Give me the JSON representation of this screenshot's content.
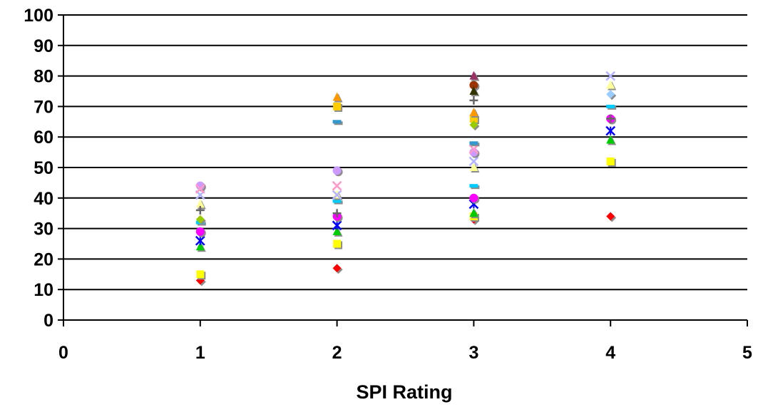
{
  "chart_data": {
    "type": "scatter",
    "title": "",
    "xlabel": "SPI Rating",
    "ylabel": "",
    "xlim": [
      0,
      5
    ],
    "ylim": [
      0,
      100
    ],
    "x_ticks": [
      0,
      1,
      2,
      3,
      4,
      5
    ],
    "y_ticks": [
      0,
      10,
      20,
      30,
      40,
      50,
      60,
      70,
      80,
      90,
      100
    ],
    "x_tick_labels": [
      "0",
      "1",
      "2",
      "3",
      "4",
      "5"
    ],
    "y_tick_labels": [
      "0",
      "10",
      "20",
      "30",
      "40",
      "50",
      "60",
      "70",
      "80",
      "90",
      "100"
    ],
    "grid": "horizontal",
    "legend": "none",
    "series": [
      {
        "color": "#ff0000",
        "marker": "diamond",
        "points": [
          [
            1,
            13
          ],
          [
            2,
            17
          ],
          [
            3,
            33
          ],
          [
            4,
            34
          ]
        ]
      },
      {
        "color": "#ffff00",
        "marker": "square",
        "points": [
          [
            1,
            15
          ],
          [
            2,
            25
          ],
          [
            3,
            34
          ],
          [
            4,
            52
          ]
        ]
      },
      {
        "color": "#00cc00",
        "marker": "triangle",
        "points": [
          [
            1,
            24
          ],
          [
            2,
            29
          ],
          [
            3,
            35
          ],
          [
            4,
            59
          ]
        ]
      },
      {
        "color": "#0000ff",
        "marker": "x-star",
        "points": [
          [
            1,
            26
          ],
          [
            2,
            31
          ],
          [
            3,
            38
          ],
          [
            4,
            62
          ]
        ]
      },
      {
        "color": "#ff00ff",
        "marker": "circle",
        "points": [
          [
            1,
            29
          ],
          [
            2,
            34
          ],
          [
            3,
            40
          ],
          [
            4,
            66
          ]
        ]
      },
      {
        "color": "#00ccff",
        "marker": "dash",
        "points": [
          [
            1,
            32
          ],
          [
            2,
            39
          ],
          [
            3,
            44
          ],
          [
            4,
            70
          ]
        ]
      },
      {
        "color": "#ffff99",
        "marker": "triangle",
        "points": [
          [
            1,
            38
          ],
          [
            2,
            41
          ],
          [
            3,
            50
          ],
          [
            4,
            77
          ]
        ]
      },
      {
        "color": "#b3b3ff",
        "marker": "x",
        "points": [
          [
            1,
            41
          ],
          [
            2,
            41
          ],
          [
            3,
            52
          ],
          [
            4,
            80
          ]
        ]
      },
      {
        "color": "#cc99ff",
        "marker": "circle",
        "points": [
          [
            1,
            44
          ],
          [
            2,
            49
          ],
          [
            3,
            55
          ]
        ]
      },
      {
        "color": "#ff99cc",
        "marker": "x",
        "points": [
          [
            1,
            43
          ],
          [
            2,
            44
          ],
          [
            3,
            56
          ]
        ]
      },
      {
        "color": "#ffcc00",
        "marker": "square",
        "points": [
          [
            2,
            70
          ],
          [
            3,
            66
          ]
        ]
      },
      {
        "color": "#ff9900",
        "marker": "triangle",
        "points": [
          [
            2,
            73
          ],
          [
            3,
            68
          ]
        ]
      },
      {
        "color": "#3399cc",
        "marker": "dash",
        "points": [
          [
            2,
            65
          ],
          [
            3,
            58
          ]
        ]
      },
      {
        "color": "#99cc00",
        "marker": "diamond",
        "points": [
          [
            1,
            33
          ],
          [
            3,
            64
          ]
        ]
      },
      {
        "color": "#666666",
        "marker": "plus",
        "points": [
          [
            1,
            36
          ],
          [
            2,
            35
          ],
          [
            3,
            72
          ],
          [
            4,
            66
          ]
        ]
      },
      {
        "color": "#993300",
        "marker": "circle",
        "points": [
          [
            3,
            77
          ]
        ]
      },
      {
        "color": "#993366",
        "marker": "triangle",
        "points": [
          [
            3,
            80
          ]
        ]
      },
      {
        "color": "#333300",
        "marker": "triangle",
        "points": [
          [
            3,
            75
          ]
        ]
      },
      {
        "color": "#99ccff",
        "marker": "diamond",
        "points": [
          [
            4,
            74
          ]
        ]
      }
    ]
  }
}
